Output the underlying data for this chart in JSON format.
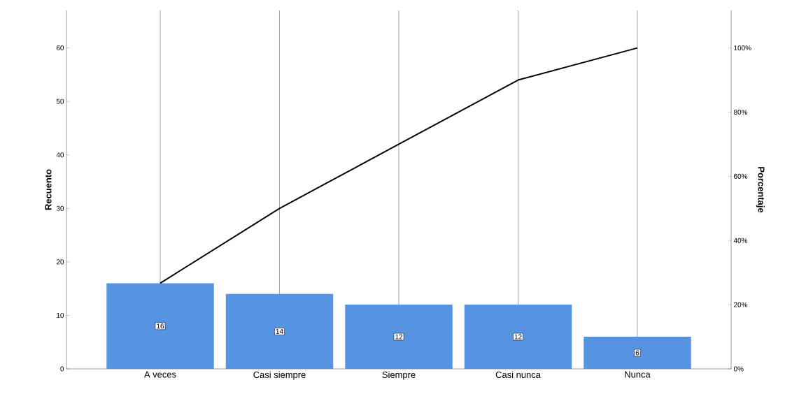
{
  "chart_data": {
    "type": "bar",
    "categories": [
      "A veces",
      "Casi siempre",
      "Siempre",
      "Casi nunca",
      "Nunca"
    ],
    "ylabel": "Recuento",
    "y2label": "Porcentaje",
    "ylim": [
      0,
      67
    ],
    "yticks": [
      0,
      10,
      20,
      30,
      40,
      50,
      60
    ],
    "y2lim": [
      0,
      111.67
    ],
    "y2ticks": [
      {
        "value": 0,
        "label": "0%"
      },
      {
        "value": 20,
        "label": "20%"
      },
      {
        "value": 40,
        "label": "40%"
      },
      {
        "value": 60,
        "label": "60%"
      },
      {
        "value": 80,
        "label": "80%"
      },
      {
        "value": 100,
        "label": "100%"
      }
    ],
    "grid": "x",
    "series": [
      {
        "color": "#5694e2",
        "values": [
          16,
          14,
          12,
          12,
          6
        ],
        "value_labels": [
          "16",
          "14",
          "12",
          "12",
          "6"
        ]
      },
      {
        "type": "line",
        "axis": "y2",
        "color": "#000000",
        "values": [
          26.7,
          50,
          70,
          90,
          100
        ]
      }
    ]
  }
}
